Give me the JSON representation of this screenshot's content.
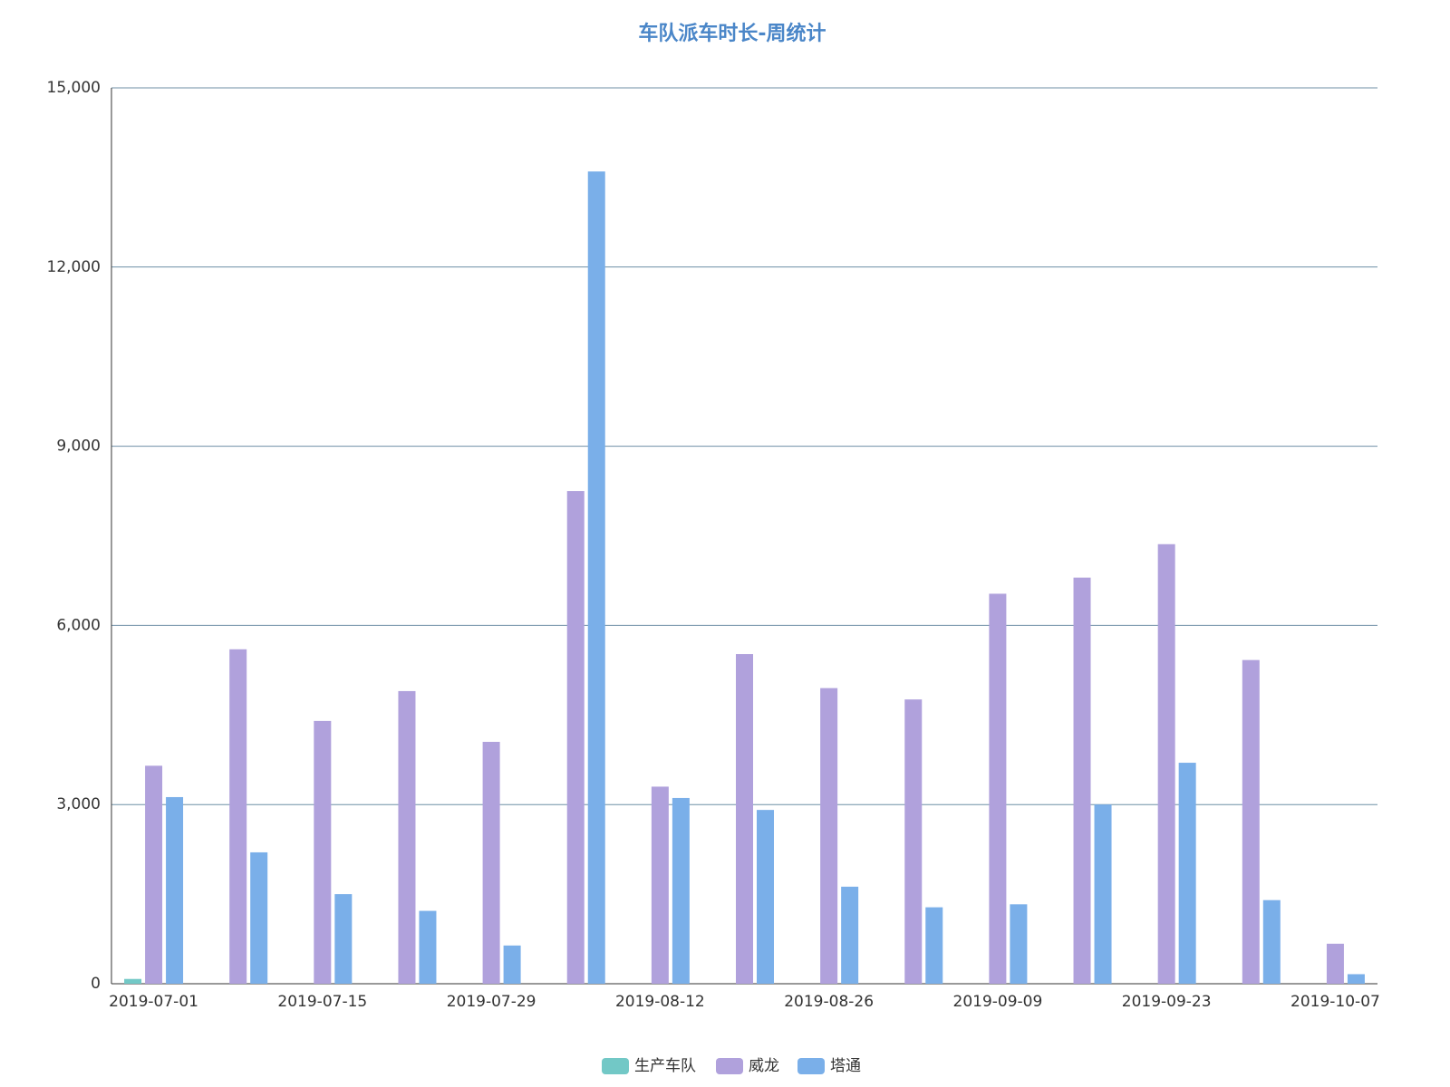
{
  "chart_data": {
    "type": "bar",
    "title": "车队派车时长-周统计",
    "categories": [
      "2019-07-01",
      null,
      "2019-07-15",
      null,
      "2019-07-29",
      null,
      "2019-08-12",
      null,
      "2019-08-26",
      null,
      "2019-09-09",
      null,
      "2019-09-23",
      null,
      "2019-10-07"
    ],
    "series": [
      {
        "name": "生产车队",
        "color": "#72c8c6",
        "values": [
          80,
          null,
          null,
          null,
          null,
          null,
          null,
          null,
          null,
          null,
          null,
          null,
          null,
          null,
          null
        ]
      },
      {
        "name": "威龙",
        "color": "#b0a1dc",
        "values": [
          3650,
          5600,
          4400,
          4900,
          4050,
          8250,
          3300,
          5520,
          4950,
          4760,
          6530,
          6800,
          7360,
          5420,
          670
        ]
      },
      {
        "name": "塔通",
        "color": "#7aafe9",
        "values": [
          3125,
          2200,
          1500,
          1220,
          640,
          13600,
          3110,
          2910,
          1625,
          1280,
          1330,
          3000,
          3700,
          1400,
          160
        ]
      }
    ],
    "ylim": [
      0,
      15000
    ],
    "yticks": [
      0,
      {
        "value": 3000,
        "label": "3,000"
      },
      {
        "value": 6000,
        "label": "6,000"
      },
      {
        "value": 9000,
        "label": "9,000"
      },
      {
        "value": 12000,
        "label": "12,000"
      },
      {
        "value": 15000,
        "label": "15,000"
      }
    ],
    "grid": true
  }
}
